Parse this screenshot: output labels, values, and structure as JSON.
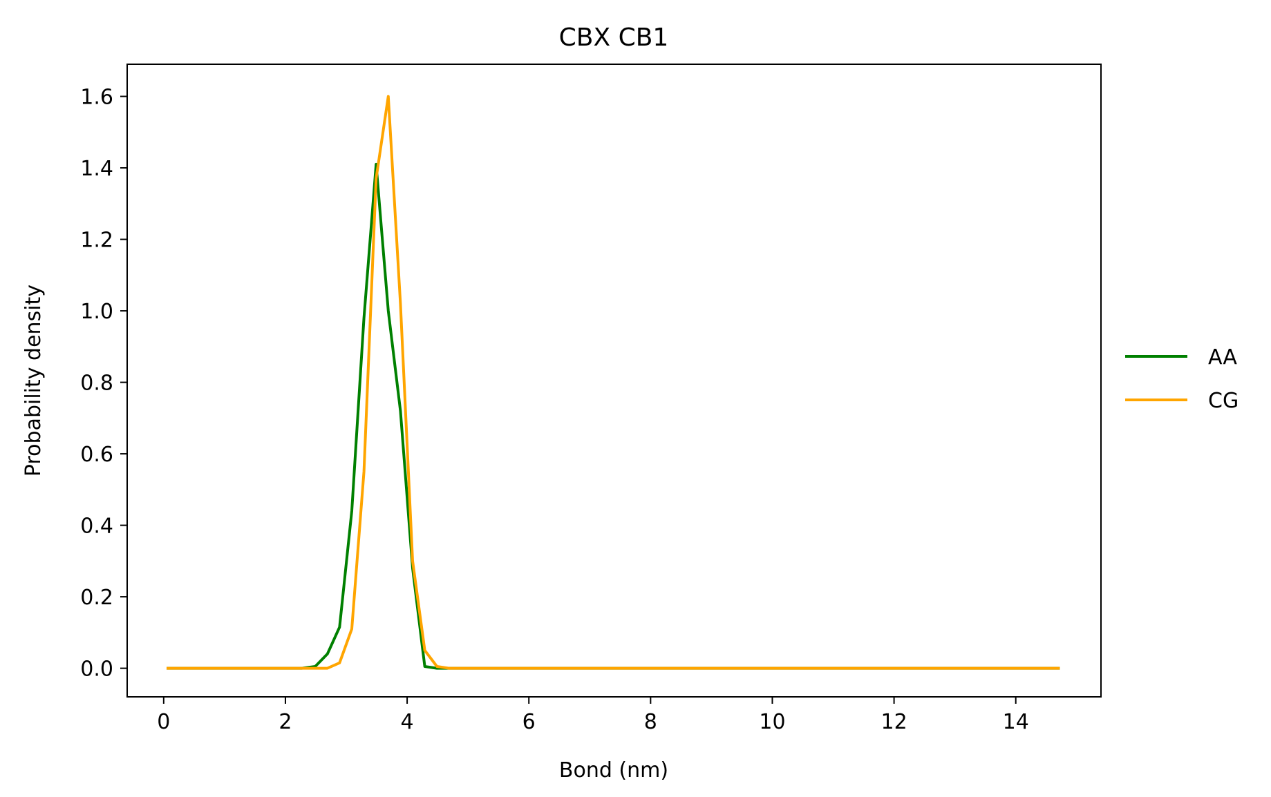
{
  "chart_data": {
    "type": "line",
    "title": "CBX CB1",
    "xlabel": "Bond (nm)",
    "ylabel": "Probability density",
    "xlim": [
      -0.6,
      15.4
    ],
    "ylim": [
      -0.08,
      1.69
    ],
    "xticks": [
      0,
      2,
      4,
      6,
      8,
      10,
      12,
      14
    ],
    "xtick_labels": [
      "0",
      "2",
      "4",
      "6",
      "8",
      "10",
      "12",
      "14"
    ],
    "yticks": [
      0.0,
      0.2,
      0.4,
      0.6,
      0.8,
      1.0,
      1.2,
      1.4,
      1.6
    ],
    "ytick_labels": [
      "0.0",
      "0.2",
      "0.4",
      "0.6",
      "0.8",
      "1.0",
      "1.2",
      "1.4",
      "1.6"
    ],
    "grid": false,
    "legend_position": "center-right, outside plot",
    "series": [
      {
        "name": "AA",
        "color": "#008000",
        "x": [
          0.07,
          2.27,
          2.49,
          2.69,
          2.89,
          3.09,
          3.29,
          3.49,
          3.69,
          3.89,
          4.09,
          4.29,
          4.49,
          4.69,
          14.7
        ],
        "y": [
          0.0,
          0.0,
          0.005,
          0.04,
          0.115,
          0.44,
          0.98,
          1.41,
          1.0,
          0.72,
          0.28,
          0.005,
          0.0,
          0.0,
          0.0
        ]
      },
      {
        "name": "CG",
        "color": "#ffa500",
        "x": [
          0.07,
          2.49,
          2.69,
          2.89,
          3.09,
          3.29,
          3.49,
          3.69,
          3.89,
          4.09,
          4.29,
          4.49,
          4.69,
          14.7
        ],
        "y": [
          0.0,
          0.0,
          0.0,
          0.015,
          0.11,
          0.55,
          1.37,
          1.6,
          1.02,
          0.3,
          0.05,
          0.005,
          0.0,
          0.0
        ]
      }
    ]
  }
}
